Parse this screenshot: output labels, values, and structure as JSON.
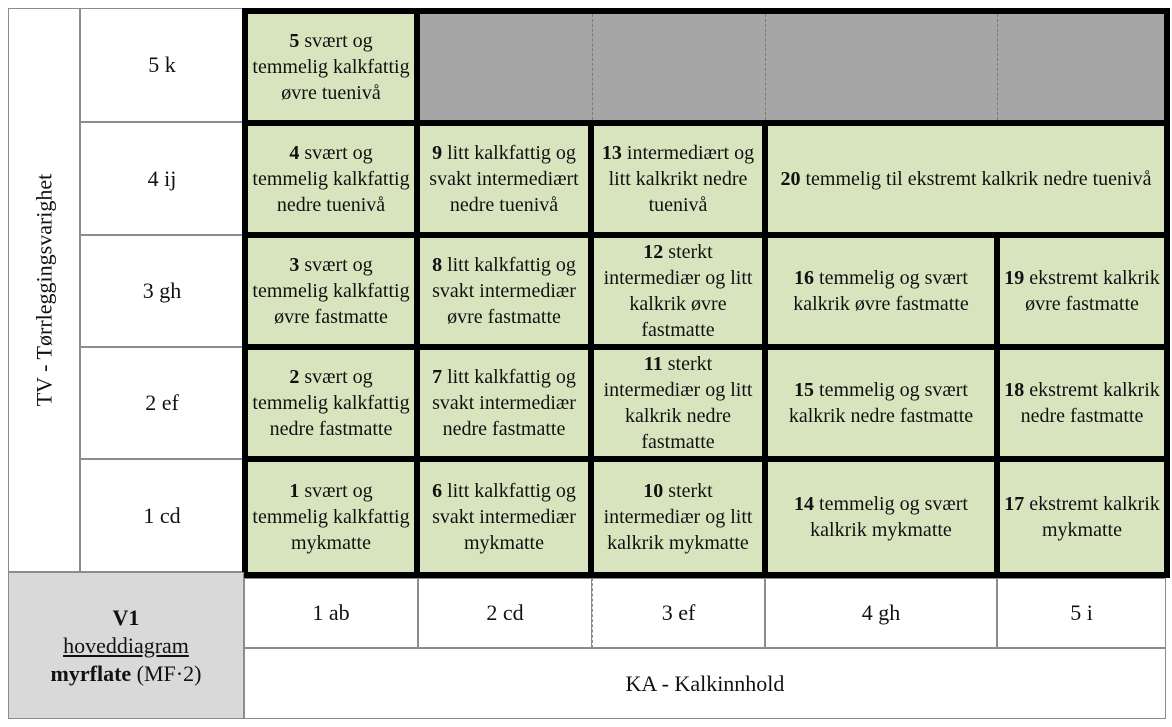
{
  "y_axis_title": "TV - Tørrleggingsvarighet",
  "x_axis_title": "KA - Kalkinnhold",
  "row_labels": [
    "5 k",
    "4 ij",
    "3 gh",
    "2 ef",
    "1 cd"
  ],
  "col_labels": [
    "1 ab",
    "2 cd",
    "3 ef",
    "4 gh",
    "5 i"
  ],
  "corner": {
    "code": "V1",
    "line2": "hoveddiagram",
    "line3_bold": "myrflate",
    "line3_rest": " (MF·2)"
  },
  "units": {
    "u5": {
      "num": "5",
      "text": "svært og temmelig kalkfattig øvre tuenivå"
    },
    "u4": {
      "num": "4",
      "text": "svært og temmelig kalkfattig nedre tuenivå"
    },
    "u9": {
      "num": "9",
      "text": "litt kalkfattig og svakt intermediært nedre tuenivå"
    },
    "u13": {
      "num": "13",
      "text": "intermediært og litt kalkrikt nedre tuenivå"
    },
    "u20": {
      "num": "20",
      "text": "temmelig til ekstremt kalkrik nedre tuenivå"
    },
    "u3": {
      "num": "3",
      "text": "svært og temmelig kalkfattig øvre fastmatte"
    },
    "u8": {
      "num": "8",
      "text": "litt kalkfattig og svakt intermediær øvre fastmatte"
    },
    "u12": {
      "num": "12",
      "text": "sterkt intermediær og litt kalkrik øvre fastmatte"
    },
    "u16": {
      "num": "16",
      "text": "temmelig og svært kalkrik øvre fastmatte"
    },
    "u19": {
      "num": "19",
      "text": "ekstremt kalkrik øvre fastmatte"
    },
    "u2": {
      "num": "2",
      "text": "svært og temmelig kalkfattig nedre fastmatte"
    },
    "u7": {
      "num": "7",
      "text": "litt kalkfattig og svakt intermediær nedre fastmatte"
    },
    "u11": {
      "num": "11",
      "text": "sterkt intermediær og litt kalkrik nedre fastmatte"
    },
    "u15": {
      "num": "15",
      "text": "temmelig og svært kalkrik nedre fastmatte"
    },
    "u18": {
      "num": "18",
      "text": "ekstremt kalkrik nedre fastmatte"
    },
    "u1": {
      "num": "1",
      "text": "svært og temmelig kalkfattig mykmatte"
    },
    "u6": {
      "num": "6",
      "text": "litt kalkfattig og svakt intermediær mykmatte"
    },
    "u10": {
      "num": "10",
      "text": "sterkt intermediær og litt kalkrik mykmatte"
    },
    "u14": {
      "num": "14",
      "text": "temmelig og svært kalkrik mykmatte"
    },
    "u17": {
      "num": "17",
      "text": "ekstremt kalkrik mykmatte"
    }
  },
  "colors": {
    "unit_fill": "#d7e4bd",
    "empty_fill": "#a6a6a6",
    "corner_fill": "#d9d9d9",
    "border": "#000000"
  }
}
